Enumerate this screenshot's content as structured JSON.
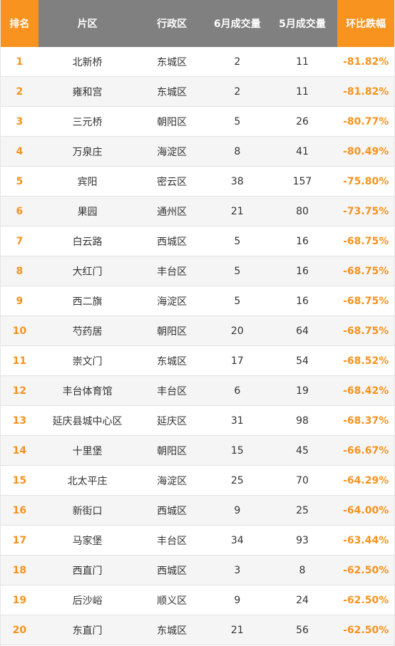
{
  "colors": {
    "accent": "#f7931e",
    "header_gray": "#808080",
    "row_alt": "#f5f5f5"
  },
  "header": {
    "rank": "排名",
    "area": "片区",
    "district": "行政区",
    "june": "6月成交量",
    "may": "5月成交量",
    "change": "环比跌幅"
  },
  "rows": [
    {
      "rank": "1",
      "area": "北新桥",
      "district": "东城区",
      "june": "2",
      "may": "11",
      "change": "-81.82%"
    },
    {
      "rank": "2",
      "area": "雍和宫",
      "district": "东城区",
      "june": "2",
      "may": "11",
      "change": "-81.82%"
    },
    {
      "rank": "3",
      "area": "三元桥",
      "district": "朝阳区",
      "june": "5",
      "may": "26",
      "change": "-80.77%"
    },
    {
      "rank": "4",
      "area": "万泉庄",
      "district": "海淀区",
      "june": "8",
      "may": "41",
      "change": "-80.49%"
    },
    {
      "rank": "5",
      "area": "宾阳",
      "district": "密云区",
      "june": "38",
      "may": "157",
      "change": "-75.80%"
    },
    {
      "rank": "6",
      "area": "果园",
      "district": "通州区",
      "june": "21",
      "may": "80",
      "change": "-73.75%"
    },
    {
      "rank": "7",
      "area": "白云路",
      "district": "西城区",
      "june": "5",
      "may": "16",
      "change": "-68.75%"
    },
    {
      "rank": "8",
      "area": "大红门",
      "district": "丰台区",
      "june": "5",
      "may": "16",
      "change": "-68.75%"
    },
    {
      "rank": "9",
      "area": "西二旗",
      "district": "海淀区",
      "june": "5",
      "may": "16",
      "change": "-68.75%"
    },
    {
      "rank": "10",
      "area": "芍药居",
      "district": "朝阳区",
      "june": "20",
      "may": "64",
      "change": "-68.75%"
    },
    {
      "rank": "11",
      "area": "崇文门",
      "district": "东城区",
      "june": "17",
      "may": "54",
      "change": "-68.52%"
    },
    {
      "rank": "12",
      "area": "丰台体育馆",
      "district": "丰台区",
      "june": "6",
      "may": "19",
      "change": "-68.42%"
    },
    {
      "rank": "13",
      "area": "延庆县城中心区",
      "district": "延庆区",
      "june": "31",
      "may": "98",
      "change": "-68.37%"
    },
    {
      "rank": "14",
      "area": "十里堡",
      "district": "朝阳区",
      "june": "15",
      "may": "45",
      "change": "-66.67%"
    },
    {
      "rank": "15",
      "area": "北太平庄",
      "district": "海淀区",
      "june": "25",
      "may": "70",
      "change": "-64.29%"
    },
    {
      "rank": "16",
      "area": "新街口",
      "district": "西城区",
      "june": "9",
      "may": "25",
      "change": "-64.00%"
    },
    {
      "rank": "17",
      "area": "马家堡",
      "district": "丰台区",
      "june": "34",
      "may": "93",
      "change": "-63.44%"
    },
    {
      "rank": "18",
      "area": "西直门",
      "district": "西城区",
      "june": "3",
      "may": "8",
      "change": "-62.50%"
    },
    {
      "rank": "19",
      "area": "后沙峪",
      "district": "顺义区",
      "june": "9",
      "may": "24",
      "change": "-62.50%"
    },
    {
      "rank": "20",
      "area": "东直门",
      "district": "东城区",
      "june": "21",
      "may": "56",
      "change": "-62.50%"
    }
  ]
}
